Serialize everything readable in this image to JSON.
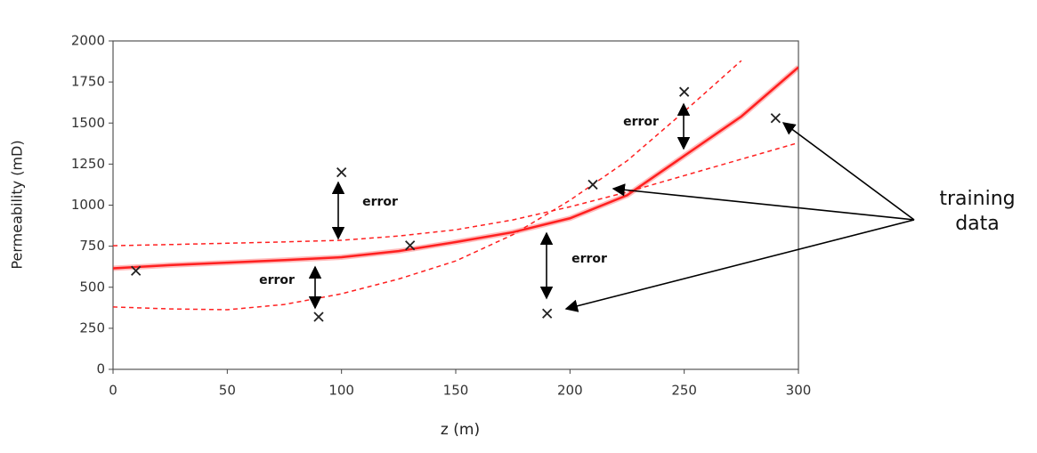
{
  "chart_data": {
    "type": "scatter",
    "x_label": "z (m)",
    "y_label": "Permeability (mD)",
    "xlim": [
      0,
      300
    ],
    "ylim": [
      0,
      2000
    ],
    "xticks": [
      0,
      50,
      100,
      150,
      200,
      250,
      300
    ],
    "yticks": [
      0,
      250,
      500,
      750,
      1000,
      1250,
      1500,
      1750,
      2000
    ],
    "grid": false,
    "points": {
      "color": "#222222",
      "marker": "x",
      "x": [
        10,
        90,
        100,
        130,
        190,
        210,
        250,
        290
      ],
      "values": [
        600,
        320,
        1200,
        755,
        340,
        1125,
        1690,
        1530
      ]
    },
    "curve_x": [
      0,
      25,
      50,
      75,
      100,
      125,
      150,
      175,
      200,
      225,
      250,
      275,
      300
    ],
    "series": [
      {
        "color": "#ff2020",
        "linestyle": "solid",
        "values": [
          615,
          635,
          650,
          665,
          683,
          720,
          775,
          835,
          920,
          1060,
          1300,
          1540,
          1840
        ]
      },
      {
        "color": "#ff2020",
        "linestyle": "dashed",
        "values": [
          753,
          760,
          768,
          776,
          786,
          812,
          850,
          910,
          990,
          1080,
          1180,
          1280,
          1380
        ]
      },
      {
        "color": "#ff2020",
        "linestyle": "dashed",
        "values": [
          380,
          368,
          363,
          395,
          460,
          550,
          660,
          820,
          1030,
          1270,
          1570,
          1880,
          null
        ]
      }
    ],
    "annotations": [
      "error",
      "error",
      "error",
      "error",
      "training data"
    ]
  }
}
